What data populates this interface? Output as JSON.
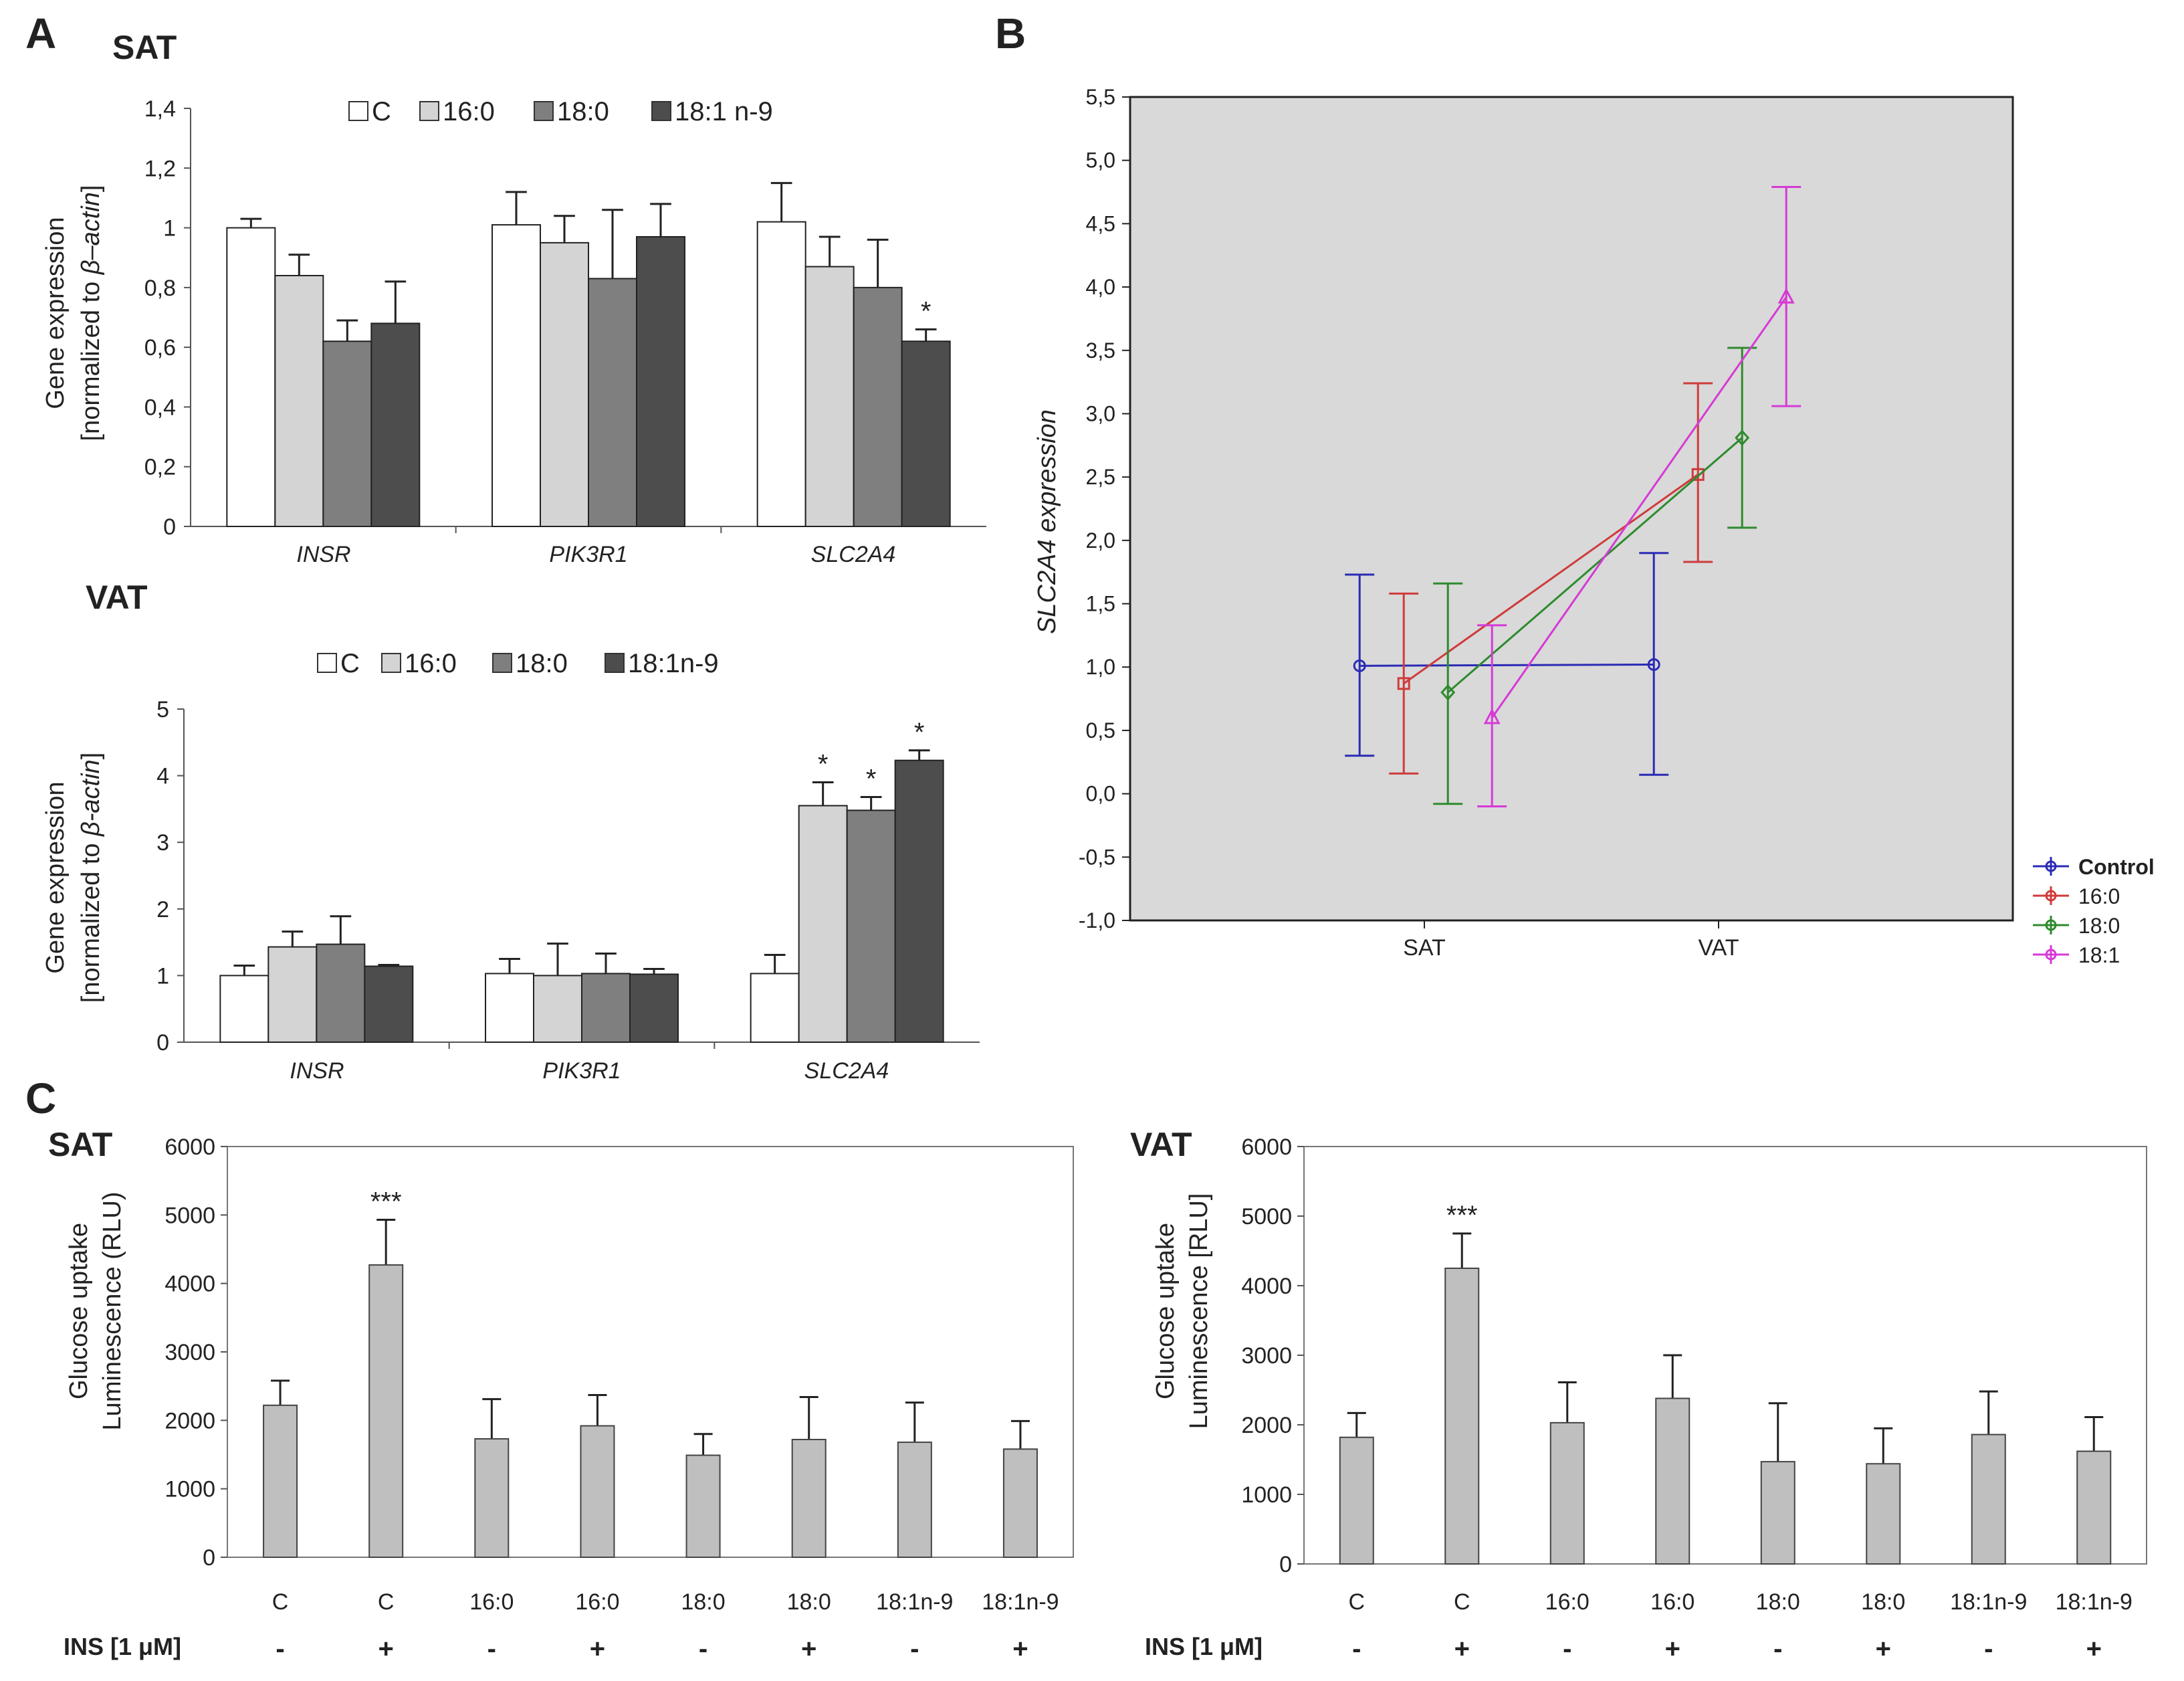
{
  "panels": {
    "A": {
      "letter": "A",
      "sat_title": "SAT",
      "vat_title": "VAT",
      "ylabel_line1": "Gene expression",
      "ylabel_line2_prefix": "[normalized to ",
      "ylabel_sat_italic": "β–actin",
      "ylabel_vat_italic": "β-actin",
      "ylabel_line2_suffix": "]"
    },
    "B": {
      "letter": "B"
    },
    "C": {
      "letter": "C",
      "sat_title": "SAT",
      "vat_title": "VAT",
      "ylabel_line1": "Glucose uptake",
      "ylabel_sat_line2": "Luminescence (RLU)",
      "ylabel_vat_line2": "Luminescence [RLU]",
      "ins_label": "INS [1 μM]"
    }
  },
  "colors": {
    "C": "#ffffff",
    "16:0": "#d4d4d4",
    "18:0": "#7f7f7f",
    "18:1": "#4d4d4d",
    "panelC_bar": "#bfbfbf",
    "plot_bg": "#d9d9d9",
    "control": "#2b2bb5",
    "fa160": "#cf3b3b",
    "fa180": "#2e8b2e",
    "fa181": "#d63ad6"
  },
  "chart_data": [
    {
      "id": "A_SAT",
      "type": "bar",
      "title": "SAT",
      "categories": [
        "INSR",
        "PIK3R1",
        "SLC2A4"
      ],
      "series": [
        {
          "name": "C",
          "values": [
            1.0,
            1.01,
            1.02
          ],
          "errors": [
            0.03,
            0.11,
            0.13
          ],
          "stars": [
            "",
            "",
            ""
          ]
        },
        {
          "name": "16:0",
          "values": [
            0.84,
            0.95,
            0.87
          ],
          "errors": [
            0.07,
            0.09,
            0.1
          ],
          "stars": [
            "",
            "",
            ""
          ]
        },
        {
          "name": "18:0",
          "values": [
            0.62,
            0.83,
            0.8
          ],
          "errors": [
            0.07,
            0.23,
            0.16
          ],
          "stars": [
            "",
            "",
            ""
          ]
        },
        {
          "name": "18:1 n-9",
          "values": [
            0.68,
            0.97,
            0.62
          ],
          "errors": [
            0.14,
            0.11,
            0.04
          ],
          "stars": [
            "",
            "",
            "*"
          ]
        }
      ],
      "ylim": [
        0,
        1.4
      ],
      "yticks": [
        "0",
        "0,2",
        "0,4",
        "0,6",
        "0,8",
        "1",
        "1,2",
        "1,4"
      ],
      "ytick_values": [
        0,
        0.2,
        0.4,
        0.6,
        0.8,
        1.0,
        1.2,
        1.4
      ],
      "ylabel": "Gene expression [normalized to β–actin]"
    },
    {
      "id": "A_VAT",
      "type": "bar",
      "title": "VAT",
      "categories": [
        "INSR",
        "PIK3R1",
        "SLC2A4"
      ],
      "series": [
        {
          "name": "C",
          "values": [
            1.0,
            1.03,
            1.03
          ],
          "errors": [
            0.15,
            0.22,
            0.28
          ],
          "stars": [
            "",
            "",
            ""
          ]
        },
        {
          "name": "16:0",
          "values": [
            1.43,
            1.0,
            3.55
          ],
          "errors": [
            0.23,
            0.48,
            0.35
          ],
          "stars": [
            "",
            "",
            "*"
          ]
        },
        {
          "name": "18:0",
          "values": [
            1.47,
            1.03,
            3.48
          ],
          "errors": [
            0.42,
            0.3,
            0.2
          ],
          "stars": [
            "",
            "",
            "*"
          ]
        },
        {
          "name": "18:1n-9",
          "values": [
            1.14,
            1.02,
            4.23
          ],
          "errors": [
            0.02,
            0.08,
            0.15
          ],
          "stars": [
            "",
            "",
            "*"
          ]
        }
      ],
      "ylim": [
        0,
        5
      ],
      "yticks": [
        "0",
        "1",
        "2",
        "3",
        "4",
        "5"
      ],
      "ytick_values": [
        0,
        1,
        2,
        3,
        4,
        5
      ],
      "ylabel": "Gene expression [normalized to β-actin]"
    },
    {
      "id": "B",
      "type": "line",
      "x": [
        "SAT",
        "VAT"
      ],
      "ylabel": "SLC2A4 expression",
      "ylim": [
        -1.0,
        5.5
      ],
      "yticks": [
        "-1,0",
        "-0,5",
        "0,0",
        "0,5",
        "1,0",
        "1,5",
        "2,0",
        "2,5",
        "3,0",
        "3,5",
        "4,0",
        "4,5",
        "5,0",
        "5,5"
      ],
      "ytick_values": [
        -1.0,
        -0.5,
        0.0,
        0.5,
        1.0,
        1.5,
        2.0,
        2.5,
        3.0,
        3.5,
        4.0,
        4.5,
        5.0,
        5.5
      ],
      "series": [
        {
          "name": "Control",
          "color_key": "control",
          "marker": "circle",
          "offset": -0.22,
          "values": [
            1.01,
            1.02
          ],
          "low": [
            0.3,
            0.15
          ],
          "high": [
            1.73,
            1.9
          ]
        },
        {
          "name": "16:0",
          "color_key": "fa160",
          "marker": "square",
          "offset": -0.07,
          "values": [
            0.87,
            2.52
          ],
          "low": [
            0.16,
            1.83
          ],
          "high": [
            1.58,
            3.24
          ]
        },
        {
          "name": "18:0",
          "color_key": "fa180",
          "marker": "diamond",
          "offset": 0.08,
          "values": [
            0.8,
            2.81
          ],
          "low": [
            -0.08,
            2.1
          ],
          "high": [
            1.66,
            3.52
          ]
        },
        {
          "name": "18:1",
          "color_key": "fa181",
          "marker": "triangle",
          "offset": 0.23,
          "values": [
            0.6,
            3.92
          ],
          "low": [
            -0.1,
            3.06
          ],
          "high": [
            1.33,
            4.79
          ]
        }
      ],
      "legend_position": "bottom-right"
    },
    {
      "id": "C_SAT",
      "type": "bar",
      "title": "SAT",
      "categories": [
        "C",
        "C",
        "16:0",
        "16:0",
        "18:0",
        "18:0",
        "18:1n-9",
        "18:1n-9"
      ],
      "ins": [
        "-",
        "+",
        "-",
        "+",
        "-",
        "+",
        "-",
        "+"
      ],
      "values": [
        2220,
        4270,
        1730,
        1920,
        1490,
        1720,
        1680,
        1580
      ],
      "errors": [
        360,
        660,
        580,
        450,
        310,
        620,
        580,
        410
      ],
      "stars": [
        "",
        "***",
        "",
        "",
        "",
        "",
        "",
        ""
      ],
      "ylim": [
        0,
        6000
      ],
      "yticks": [
        "0",
        "1000",
        "2000",
        "3000",
        "4000",
        "5000",
        "6000"
      ],
      "ytick_values": [
        0,
        1000,
        2000,
        3000,
        4000,
        5000,
        6000
      ],
      "ylabel": "Glucose uptake Luminescence (RLU)"
    },
    {
      "id": "C_VAT",
      "type": "bar",
      "title": "VAT",
      "categories": [
        "C",
        "C",
        "16:0",
        "16:0",
        "18:0",
        "18:0",
        "18:1n-9",
        "18:1n-9"
      ],
      "ins": [
        "-",
        "+",
        "-",
        "+",
        "-",
        "+",
        "-",
        "+"
      ],
      "values": [
        1820,
        4250,
        2030,
        2380,
        1470,
        1440,
        1860,
        1620
      ],
      "errors": [
        350,
        500,
        580,
        620,
        840,
        510,
        620,
        490
      ],
      "stars": [
        "",
        "***",
        "",
        "",
        "",
        "",
        "",
        ""
      ],
      "ylim": [
        0,
        6000
      ],
      "yticks": [
        "0",
        "1000",
        "2000",
        "3000",
        "4000",
        "5000",
        "6000"
      ],
      "ytick_values": [
        0,
        1000,
        2000,
        3000,
        4000,
        5000,
        6000
      ],
      "ylabel": "Glucose uptake Luminescence [RLU]"
    }
  ]
}
